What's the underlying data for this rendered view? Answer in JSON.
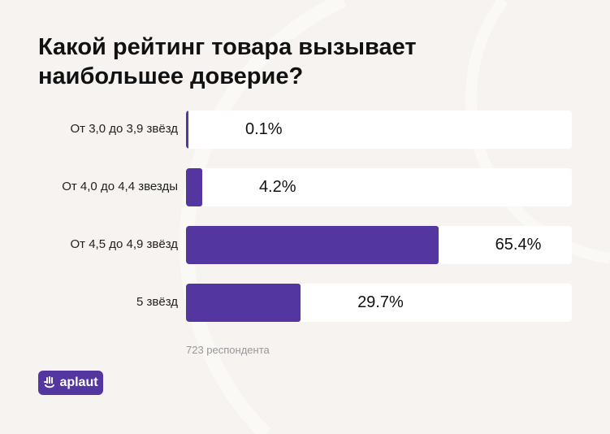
{
  "chart_data": {
    "type": "bar",
    "orientation": "horizontal",
    "title": "Какой рейтинг товара вызывает наибольшее доверие?",
    "categories": [
      "От 3,0 до 3,9 звёзд",
      "От 4,0 до 4,4 звезды",
      "От 4,5 до 4,9 звёзд",
      "5 звёзд"
    ],
    "values": [
      0.1,
      4.2,
      65.4,
      29.7
    ],
    "value_labels": [
      "0.1%",
      "4.2%",
      "65.4%",
      "29.7%"
    ],
    "xlim": [
      0,
      100
    ],
    "unit": "%",
    "grid": false,
    "bar_color": "#5436a0",
    "track_color": "#ffffff"
  },
  "footnote": "723 респондента",
  "logo": {
    "text": "aplaut",
    "icon": "hand-icon",
    "color": "#5436a0"
  }
}
